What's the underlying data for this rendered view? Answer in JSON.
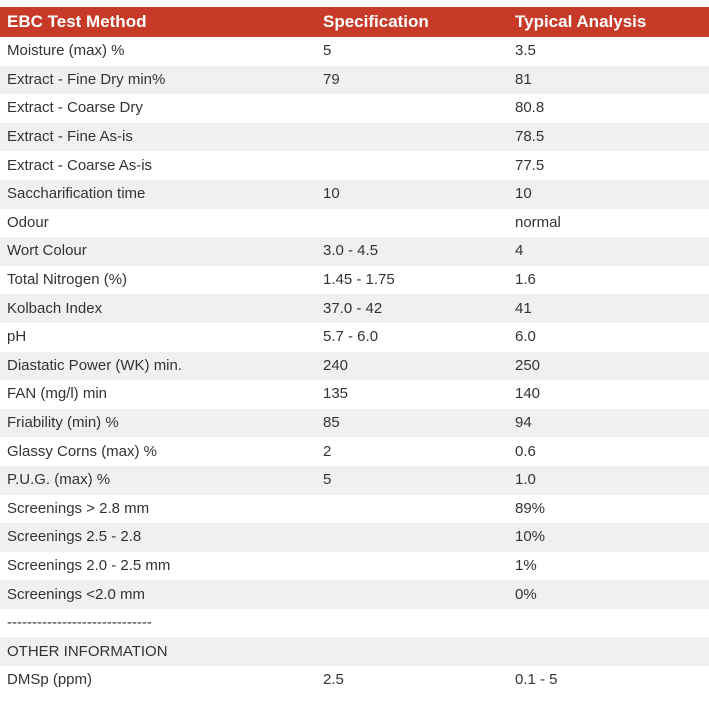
{
  "table": {
    "headers": [
      "EBC Test Method",
      "Specification",
      "Typical Analysis"
    ],
    "rows": [
      [
        "Moisture (max) %",
        "5",
        "3.5"
      ],
      [
        "Extract - Fine Dry min%",
        "79",
        "81"
      ],
      [
        "Extract - Coarse Dry",
        "",
        "80.8"
      ],
      [
        "Extract - Fine As-is",
        "",
        "78.5"
      ],
      [
        "Extract - Coarse As-is",
        "",
        "77.5"
      ],
      [
        "Saccharification time",
        "10",
        "10"
      ],
      [
        "Odour",
        "",
        "normal"
      ],
      [
        "Wort Colour",
        "3.0 - 4.5",
        "4"
      ],
      [
        "Total Nitrogen (%)",
        "1.45 - 1.75",
        "1.6"
      ],
      [
        "Kolbach Index",
        "37.0 - 42",
        "41"
      ],
      [
        "pH",
        "5.7 - 6.0",
        "6.0"
      ],
      [
        "Diastatic Power (WK) min.",
        "240",
        "250"
      ],
      [
        "FAN (mg/l) min",
        "135",
        "140"
      ],
      [
        "Friability (min) %",
        "85",
        "94"
      ],
      [
        "Glassy Corns (max) %",
        "2",
        "0.6"
      ],
      [
        "P.U.G. (max) %",
        "5",
        "1.0"
      ],
      [
        "Screenings > 2.8 mm",
        "",
        "89%"
      ],
      [
        "Screenings 2.5 - 2.8",
        "",
        "10%"
      ],
      [
        "Screenings 2.0 - 2.5 mm",
        "",
        "1%"
      ],
      [
        "Screenings <2.0 mm",
        "",
        "0%"
      ],
      [
        "-----------------------------",
        "",
        ""
      ],
      [
        "OTHER INFORMATION",
        "",
        ""
      ],
      [
        "DMSp (ppm)",
        "2.5",
        "0.1 - 5"
      ]
    ]
  },
  "colors": {
    "header_bg": "#c83a28",
    "header_text": "#ffffff",
    "row_alt_bg": "#f0f0f0",
    "body_text": "#333333"
  }
}
